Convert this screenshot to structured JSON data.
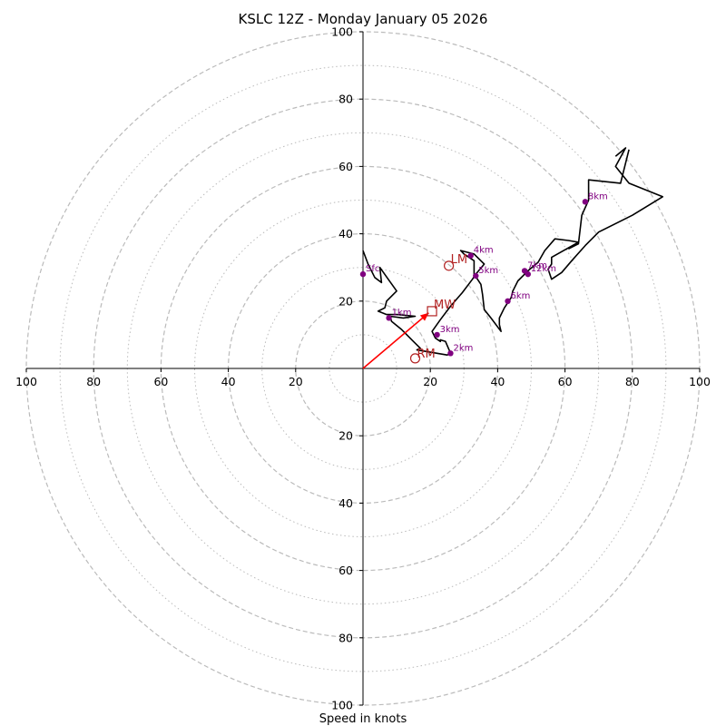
{
  "chart_data": {
    "type": "hodograph",
    "title": "KSLC 12Z - Monday January 05 2026",
    "xlabel": "Speed in knots",
    "axis_range": [
      -100,
      100
    ],
    "ring_major": [
      20,
      40,
      60,
      80,
      100
    ],
    "ring_minor": [
      10,
      30,
      50,
      70,
      90
    ],
    "ticks": {
      "left": [
        "100",
        "80",
        "60",
        "40",
        "20"
      ],
      "right": [
        "20",
        "40",
        "60",
        "80",
        "100"
      ],
      "top": [
        "20",
        "40",
        "60",
        "80",
        "100"
      ],
      "bottom": [
        "20",
        "40",
        "60",
        "80",
        "100"
      ]
    },
    "tick_values": [
      20,
      40,
      60,
      80,
      100
    ],
    "hodograph_line": [
      [
        0,
        35
      ],
      [
        1.5,
        31
      ],
      [
        3.5,
        27
      ],
      [
        5.5,
        25.5
      ],
      [
        5,
        30
      ],
      [
        7.5,
        26.5
      ],
      [
        10,
        23
      ],
      [
        7,
        20
      ],
      [
        6.5,
        18
      ],
      [
        4.5,
        17
      ],
      [
        7,
        16
      ],
      [
        10,
        16
      ],
      [
        15.5,
        15.5
      ],
      [
        12,
        15
      ],
      [
        8,
        15.5
      ],
      [
        8.5,
        14
      ],
      [
        11.5,
        11.5
      ],
      [
        15,
        8
      ],
      [
        17,
        6
      ],
      [
        16,
        5.5
      ],
      [
        19,
        5
      ],
      [
        22,
        4.5
      ],
      [
        25,
        4
      ],
      [
        26,
        4.5
      ],
      [
        24.5,
        8
      ],
      [
        23,
        8.5
      ],
      [
        23,
        8
      ],
      [
        21.5,
        9
      ],
      [
        20.5,
        11
      ],
      [
        23,
        14.5
      ],
      [
        26,
        18.5
      ],
      [
        29.5,
        22.5
      ],
      [
        32.5,
        26.5
      ],
      [
        33.5,
        28
      ],
      [
        36,
        31
      ],
      [
        33,
        34
      ],
      [
        29,
        35
      ],
      [
        30,
        34
      ],
      [
        33,
        32
      ],
      [
        33,
        28
      ],
      [
        35,
        25
      ],
      [
        35.5,
        22
      ],
      [
        36,
        17.5
      ],
      [
        38,
        15
      ],
      [
        41,
        11
      ],
      [
        40.5,
        13
      ],
      [
        40.5,
        15
      ],
      [
        42,
        18
      ],
      [
        44,
        21
      ],
      [
        44.5,
        23
      ],
      [
        46,
        26
      ],
      [
        49,
        29
      ],
      [
        52,
        31.5
      ],
      [
        54,
        35
      ],
      [
        57,
        38.5
      ],
      [
        61,
        38
      ],
      [
        64,
        37.5
      ],
      [
        56,
        33
      ],
      [
        56,
        31
      ],
      [
        55,
        29.5
      ],
      [
        56,
        26.5
      ],
      [
        59,
        28.5
      ],
      [
        62,
        32
      ],
      [
        66,
        36.5
      ],
      [
        70,
        40.5
      ],
      [
        80,
        45.5
      ],
      [
        89,
        51
      ],
      [
        79,
        55
      ],
      [
        75,
        60
      ],
      [
        78,
        65.5
      ],
      [
        75,
        63
      ]
    ],
    "hodograph_line2": [
      [
        61,
        35.5
      ],
      [
        64,
        37
      ],
      [
        65,
        45.5
      ],
      [
        67,
        50
      ],
      [
        67,
        56
      ],
      [
        76.5,
        55
      ],
      [
        79,
        65
      ]
    ],
    "heights": [
      {
        "label": "Sfc",
        "u": 0,
        "v": 28
      },
      {
        "label": "1km",
        "u": 7.7,
        "v": 15
      },
      {
        "label": "2km",
        "u": 26,
        "v": 4.5
      },
      {
        "label": "3km",
        "u": 22,
        "v": 10
      },
      {
        "label": "4km",
        "u": 32,
        "v": 33.5
      },
      {
        "label": "5km",
        "u": 33.5,
        "v": 27.5
      },
      {
        "label": "6km",
        "u": 43,
        "v": 20
      },
      {
        "label": "7km",
        "u": 48,
        "v": 29
      },
      {
        "label": "12km",
        "u": 49,
        "v": 28
      },
      {
        "label": "8km",
        "u": 66,
        "v": 49.5
      }
    ],
    "markers": {
      "rm": {
        "label": "RM",
        "u": 15.5,
        "v": 3
      },
      "lm": {
        "label": "LM",
        "u": 25.5,
        "v": 30.5
      },
      "mw": {
        "label": "MW",
        "u": 20.5,
        "v": 17
      }
    },
    "shear_vector": {
      "from": [
        0,
        0
      ],
      "to": [
        19.5,
        16.5
      ]
    },
    "colors": {
      "line": "#000000",
      "height_marker": "#800080",
      "storm_motion": "#b22222",
      "vector": "#ff0000",
      "ring": "#bbbbbb"
    }
  }
}
